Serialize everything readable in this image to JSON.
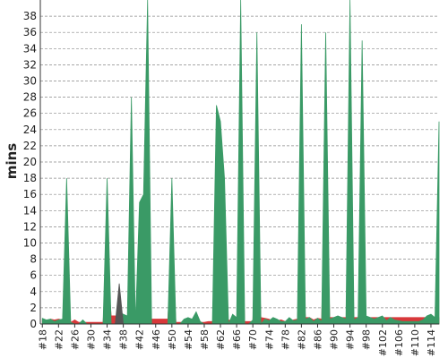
{
  "chart_data": {
    "type": "area",
    "y_label": "mins",
    "x": [
      18,
      19,
      20,
      21,
      22,
      23,
      24,
      25,
      26,
      27,
      28,
      29,
      30,
      31,
      32,
      33,
      34,
      35,
      36,
      37,
      38,
      39,
      40,
      41,
      42,
      43,
      44,
      45,
      46,
      47,
      48,
      49,
      50,
      51,
      52,
      53,
      54,
      55,
      56,
      57,
      58,
      59,
      60,
      61,
      62,
      63,
      64,
      65,
      66,
      67,
      68,
      69,
      70,
      71,
      72,
      73,
      74,
      75,
      76,
      77,
      78,
      79,
      80,
      81,
      82,
      83,
      84,
      85,
      86,
      87,
      88,
      89,
      90,
      91,
      92,
      93,
      94,
      95,
      96,
      97,
      98,
      99,
      100,
      101,
      102,
      103,
      104,
      105,
      106,
      107,
      108,
      109,
      110,
      111,
      112,
      113,
      114,
      115,
      116
    ],
    "series": [
      {
        "color": "#d8383a",
        "values": [
          0.5,
          0.3,
          0.6,
          0.5,
          0.6,
          0.5,
          8,
          0.2,
          0.5,
          0.2,
          0.2,
          0.2,
          0.2,
          0.2,
          0.2,
          0.2,
          8,
          1,
          1,
          0.8,
          0.5,
          0.3,
          0.5,
          0.5,
          0.6,
          0.6,
          0.6,
          0.6,
          0.6,
          0.6,
          0.6,
          0.6,
          9,
          0.2,
          0.2,
          0.2,
          0.2,
          0.2,
          0.2,
          0.2,
          0.2,
          0.3,
          0.3,
          0.6,
          2,
          1,
          0.5,
          0.4,
          0.3,
          14,
          0.3,
          0.3,
          0.3,
          14,
          0.8,
          0.7,
          0.6,
          0.3,
          0.4,
          0.5,
          0.3,
          0.3,
          0.5,
          0.6,
          10,
          0.8,
          0.8,
          0.5,
          0.7,
          0.6,
          20,
          0.8,
          0.8,
          0.8,
          0.8,
          0.8,
          0.8,
          0.8,
          0.8,
          8,
          0.8,
          0.8,
          0.8,
          0.8,
          0.8,
          0.8,
          0.8,
          0.8,
          0.8,
          0.8,
          0.8,
          0.8,
          0.8,
          0.8,
          0.8,
          0.8,
          0.8,
          0.8,
          0.8
        ]
      },
      {
        "color": "#3a9a66",
        "values": [
          0.7,
          0.5,
          0.6,
          0.3,
          0.5,
          0.6,
          18,
          0.2,
          0,
          0,
          0.5,
          0,
          0,
          0,
          0,
          0,
          18,
          0,
          0,
          1.5,
          1.2,
          1,
          28,
          0,
          15,
          16,
          40,
          0,
          0,
          0,
          0,
          0,
          18,
          0,
          0,
          0.6,
          0.8,
          0.6,
          1.5,
          0.3,
          0,
          0,
          0,
          27,
          25,
          18,
          0,
          1.2,
          0.8,
          40,
          0,
          0,
          0.5,
          36,
          0,
          0.6,
          0.4,
          0.8,
          0.6,
          0.3,
          0.3,
          0.8,
          0.4,
          0.5,
          37,
          0.6,
          0.8,
          0.3,
          0.7,
          0.3,
          36,
          0.6,
          0.8,
          1,
          0.8,
          0.6,
          40,
          0.5,
          0.8,
          35,
          1,
          0.8,
          0.6,
          0.8,
          1,
          0.4,
          0.8,
          0.5,
          0.4,
          0.3,
          0.3,
          0.3,
          0.3,
          0.3,
          0.5,
          1,
          1.2,
          0.8,
          25
        ]
      },
      {
        "color": "#555555",
        "values": [
          null,
          null,
          null,
          null,
          null,
          null,
          null,
          null,
          null,
          null,
          null,
          null,
          null,
          null,
          null,
          null,
          null,
          null,
          0,
          5,
          0,
          null,
          null,
          null,
          null,
          null,
          null,
          null,
          null,
          null,
          null,
          null,
          null,
          null,
          null,
          null,
          null,
          null,
          null,
          null,
          null,
          null,
          null,
          null,
          null,
          null,
          null,
          null,
          null,
          null,
          null,
          null,
          null,
          null,
          null,
          null,
          null,
          null,
          null,
          null,
          null,
          null,
          null,
          null,
          null,
          null,
          null,
          null,
          null,
          null,
          null,
          null,
          null,
          null,
          null,
          null,
          null,
          null,
          null,
          null,
          null,
          null,
          null,
          null,
          null,
          null,
          null,
          null,
          null,
          null,
          null,
          null,
          null,
          null,
          null,
          null,
          null,
          null,
          null
        ]
      }
    ],
    "xlim": [
      17.5,
      116
    ],
    "xticks": [
      {
        "value": 18,
        "label": "#18"
      },
      {
        "value": 22,
        "label": "#22"
      },
      {
        "value": 26,
        "label": "#26"
      },
      {
        "value": 30,
        "label": "#30"
      },
      {
        "value": 34,
        "label": "#34"
      },
      {
        "value": 38,
        "label": "#38"
      },
      {
        "value": 42,
        "label": "#42"
      },
      {
        "value": 46,
        "label": "#46"
      },
      {
        "value": 50,
        "label": "#50"
      },
      {
        "value": 54,
        "label": "#54"
      },
      {
        "value": 58,
        "label": "#58"
      },
      {
        "value": 62,
        "label": "#62"
      },
      {
        "value": 66,
        "label": "#66"
      },
      {
        "value": 70,
        "label": "#70"
      },
      {
        "value": 74,
        "label": "#74"
      },
      {
        "value": 78,
        "label": "#78"
      },
      {
        "value": 82,
        "label": "#82"
      },
      {
        "value": 86,
        "label": "#86"
      },
      {
        "value": 90,
        "label": "#90"
      },
      {
        "value": 94,
        "label": "#94"
      },
      {
        "value": 98,
        "label": "#98"
      },
      {
        "value": 102,
        "label": "#102"
      },
      {
        "value": 106,
        "label": "#106"
      },
      {
        "value": 110,
        "label": "#110"
      },
      {
        "value": 114,
        "label": "#114"
      }
    ],
    "ylim": [
      0,
      40
    ],
    "yticks": [
      0,
      2,
      4,
      6,
      8,
      10,
      12,
      14,
      16,
      18,
      20,
      22,
      24,
      26,
      28,
      30,
      32,
      34,
      36,
      38
    ],
    "grid": true
  }
}
